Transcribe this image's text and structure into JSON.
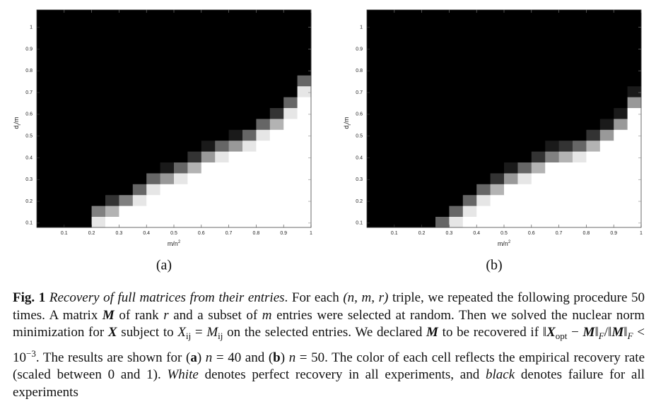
{
  "chart_data": [
    {
      "type": "heatmap",
      "label": "(a)",
      "x_label": [
        "m/n",
        "2"
      ],
      "y_label": [
        "d",
        "r",
        "/m"
      ],
      "colormap": "gray",
      "xlim": [
        0,
        1
      ],
      "ylim": [
        0.08,
        1.08
      ],
      "xticks": [
        0.1,
        0.2,
        0.3,
        0.4,
        0.5,
        0.6,
        0.7,
        0.8,
        0.9,
        1
      ],
      "yticks": [
        0.1,
        0.2,
        0.3,
        0.4,
        0.5,
        0.6,
        0.7,
        0.8,
        0.9,
        1
      ],
      "x_bins": [
        0,
        0.05,
        0.1,
        0.15,
        0.2,
        0.25,
        0.3,
        0.35,
        0.4,
        0.45,
        0.5,
        0.55,
        0.6,
        0.65,
        0.7,
        0.75,
        0.8,
        0.85,
        0.9,
        0.95,
        1
      ],
      "y_bins": [
        0.08,
        0.13,
        0.18,
        0.23,
        0.28,
        0.33,
        0.38,
        0.43,
        0.48,
        0.53,
        0.58,
        0.63,
        0.68,
        0.73,
        0.78,
        0.83,
        0.88,
        0.93,
        0.98,
        1.03,
        1.08
      ],
      "values": [
        [
          0,
          0,
          0,
          0,
          0.9,
          1,
          1,
          1,
          1,
          1,
          1,
          1,
          1,
          1,
          1,
          1,
          1,
          1,
          1,
          1
        ],
        [
          0,
          0,
          0,
          0,
          0.5,
          0.7,
          1,
          1,
          1,
          1,
          1,
          1,
          1,
          1,
          1,
          1,
          1,
          1,
          1,
          1
        ],
        [
          0,
          0,
          0,
          0,
          0,
          0.2,
          0.5,
          0.9,
          1,
          1,
          1,
          1,
          1,
          1,
          1,
          1,
          1,
          1,
          1,
          1
        ],
        [
          0,
          0,
          0,
          0,
          0,
          0,
          0,
          0.4,
          0.9,
          1,
          1,
          1,
          1,
          1,
          1,
          1,
          1,
          1,
          1,
          1
        ],
        [
          0,
          0,
          0,
          0,
          0,
          0,
          0,
          0,
          0.4,
          0.6,
          0.9,
          1,
          1,
          1,
          1,
          1,
          1,
          1,
          1,
          1
        ],
        [
          0,
          0,
          0,
          0,
          0,
          0,
          0,
          0,
          0,
          0.1,
          0.4,
          0.7,
          1,
          1,
          1,
          1,
          1,
          1,
          1,
          1
        ],
        [
          0,
          0,
          0,
          0,
          0,
          0,
          0,
          0,
          0,
          0,
          0,
          0.2,
          0.6,
          0.9,
          1,
          1,
          1,
          1,
          1,
          1
        ],
        [
          0,
          0,
          0,
          0,
          0,
          0,
          0,
          0,
          0,
          0,
          0,
          0,
          0.1,
          0.4,
          0.6,
          0.9,
          1,
          1,
          1,
          1
        ],
        [
          0,
          0,
          0,
          0,
          0,
          0,
          0,
          0,
          0,
          0,
          0,
          0,
          0,
          0,
          0.1,
          0.4,
          0.9,
          1,
          1,
          1
        ],
        [
          0,
          0,
          0,
          0,
          0,
          0,
          0,
          0,
          0,
          0,
          0,
          0,
          0,
          0,
          0,
          0,
          0.4,
          0.7,
          1,
          1
        ],
        [
          0,
          0,
          0,
          0,
          0,
          0,
          0,
          0,
          0,
          0,
          0,
          0,
          0,
          0,
          0,
          0,
          0,
          0.2,
          0.9,
          1
        ],
        [
          0,
          0,
          0,
          0,
          0,
          0,
          0,
          0,
          0,
          0,
          0,
          0,
          0,
          0,
          0,
          0,
          0,
          0,
          0.4,
          1
        ],
        [
          0,
          0,
          0,
          0,
          0,
          0,
          0,
          0,
          0,
          0,
          0,
          0,
          0,
          0,
          0,
          0,
          0,
          0,
          0,
          0.9
        ],
        [
          0,
          0,
          0,
          0,
          0,
          0,
          0,
          0,
          0,
          0,
          0,
          0,
          0,
          0,
          0,
          0,
          0,
          0,
          0,
          0.4
        ],
        [
          0,
          0,
          0,
          0,
          0,
          0,
          0,
          0,
          0,
          0,
          0,
          0,
          0,
          0,
          0,
          0,
          0,
          0,
          0,
          0
        ],
        [
          0,
          0,
          0,
          0,
          0,
          0,
          0,
          0,
          0,
          0,
          0,
          0,
          0,
          0,
          0,
          0,
          0,
          0,
          0,
          0
        ],
        [
          0,
          0,
          0,
          0,
          0,
          0,
          0,
          0,
          0,
          0,
          0,
          0,
          0,
          0,
          0,
          0,
          0,
          0,
          0,
          0
        ],
        [
          0,
          0,
          0,
          0,
          0,
          0,
          0,
          0,
          0,
          0,
          0,
          0,
          0,
          0,
          0,
          0,
          0,
          0,
          0,
          0
        ],
        [
          0,
          0,
          0,
          0,
          0,
          0,
          0,
          0,
          0,
          0,
          0,
          0,
          0,
          0,
          0,
          0,
          0,
          0,
          0,
          0
        ],
        [
          0,
          0,
          0,
          0,
          0,
          0,
          0,
          0,
          0,
          0,
          0,
          0,
          0,
          0,
          0,
          0,
          0,
          0,
          0,
          0
        ]
      ]
    },
    {
      "type": "heatmap",
      "label": "(b)",
      "x_label": [
        "m/n",
        "2"
      ],
      "y_label": [
        "d",
        "r",
        "/m"
      ],
      "colormap": "gray",
      "xlim": [
        0,
        1
      ],
      "ylim": [
        0.08,
        1.08
      ],
      "xticks": [
        0.1,
        0.2,
        0.3,
        0.4,
        0.5,
        0.6,
        0.7,
        0.8,
        0.9,
        1
      ],
      "yticks": [
        0.1,
        0.2,
        0.3,
        0.4,
        0.5,
        0.6,
        0.7,
        0.8,
        0.9,
        1
      ],
      "x_bins": [
        0,
        0.05,
        0.1,
        0.15,
        0.2,
        0.25,
        0.3,
        0.35,
        0.4,
        0.45,
        0.5,
        0.55,
        0.6,
        0.65,
        0.7,
        0.75,
        0.8,
        0.85,
        0.9,
        0.95,
        1
      ],
      "y_bins": [
        0.08,
        0.13,
        0.18,
        0.23,
        0.28,
        0.33,
        0.38,
        0.43,
        0.48,
        0.53,
        0.58,
        0.63,
        0.68,
        0.73,
        0.78,
        0.83,
        0.88,
        0.93,
        0.98,
        1.03,
        1.08
      ],
      "values": [
        [
          0,
          0,
          0,
          0,
          0,
          0.4,
          0.9,
          1,
          1,
          1,
          1,
          1,
          1,
          1,
          1,
          1,
          1,
          1,
          1,
          1
        ],
        [
          0,
          0,
          0,
          0,
          0,
          0,
          0.4,
          0.9,
          1,
          1,
          1,
          1,
          1,
          1,
          1,
          1,
          1,
          1,
          1,
          1
        ],
        [
          0,
          0,
          0,
          0,
          0,
          0,
          0,
          0.4,
          0.9,
          1,
          1,
          1,
          1,
          1,
          1,
          1,
          1,
          1,
          1,
          1
        ],
        [
          0,
          0,
          0,
          0,
          0,
          0,
          0,
          0,
          0.4,
          0.7,
          1,
          1,
          1,
          1,
          1,
          1,
          1,
          1,
          1,
          1
        ],
        [
          0,
          0,
          0,
          0,
          0,
          0,
          0,
          0,
          0,
          0.2,
          0.6,
          0.9,
          1,
          1,
          1,
          1,
          1,
          1,
          1,
          1
        ],
        [
          0,
          0,
          0,
          0,
          0,
          0,
          0,
          0,
          0,
          0,
          0.1,
          0.4,
          0.7,
          1,
          1,
          1,
          1,
          1,
          1,
          1
        ],
        [
          0,
          0,
          0,
          0,
          0,
          0,
          0,
          0,
          0,
          0,
          0,
          0,
          0.2,
          0.5,
          0.7,
          0.9,
          1,
          1,
          1,
          1
        ],
        [
          0,
          0,
          0,
          0,
          0,
          0,
          0,
          0,
          0,
          0,
          0,
          0,
          0,
          0.1,
          0.2,
          0.4,
          0.7,
          1,
          1,
          1
        ],
        [
          0,
          0,
          0,
          0,
          0,
          0,
          0,
          0,
          0,
          0,
          0,
          0,
          0,
          0,
          0,
          0,
          0.2,
          0.6,
          1,
          1
        ],
        [
          0,
          0,
          0,
          0,
          0,
          0,
          0,
          0,
          0,
          0,
          0,
          0,
          0,
          0,
          0,
          0,
          0,
          0.1,
          0.6,
          1
        ],
        [
          0,
          0,
          0,
          0,
          0,
          0,
          0,
          0,
          0,
          0,
          0,
          0,
          0,
          0,
          0,
          0,
          0,
          0,
          0.1,
          1
        ],
        [
          0,
          0,
          0,
          0,
          0,
          0,
          0,
          0,
          0,
          0,
          0,
          0,
          0,
          0,
          0,
          0,
          0,
          0,
          0,
          0.6
        ],
        [
          0,
          0,
          0,
          0,
          0,
          0,
          0,
          0,
          0,
          0,
          0,
          0,
          0,
          0,
          0,
          0,
          0,
          0,
          0,
          0.1
        ],
        [
          0,
          0,
          0,
          0,
          0,
          0,
          0,
          0,
          0,
          0,
          0,
          0,
          0,
          0,
          0,
          0,
          0,
          0,
          0,
          0
        ],
        [
          0,
          0,
          0,
          0,
          0,
          0,
          0,
          0,
          0,
          0,
          0,
          0,
          0,
          0,
          0,
          0,
          0,
          0,
          0,
          0
        ],
        [
          0,
          0,
          0,
          0,
          0,
          0,
          0,
          0,
          0,
          0,
          0,
          0,
          0,
          0,
          0,
          0,
          0,
          0,
          0,
          0
        ],
        [
          0,
          0,
          0,
          0,
          0,
          0,
          0,
          0,
          0,
          0,
          0,
          0,
          0,
          0,
          0,
          0,
          0,
          0,
          0,
          0
        ],
        [
          0,
          0,
          0,
          0,
          0,
          0,
          0,
          0,
          0,
          0,
          0,
          0,
          0,
          0,
          0,
          0,
          0,
          0,
          0,
          0
        ],
        [
          0,
          0,
          0,
          0,
          0,
          0,
          0,
          0,
          0,
          0,
          0,
          0,
          0,
          0,
          0,
          0,
          0,
          0,
          0,
          0
        ],
        [
          0,
          0,
          0,
          0,
          0,
          0,
          0,
          0,
          0,
          0,
          0,
          0,
          0,
          0,
          0,
          0,
          0,
          0,
          0,
          0
        ]
      ]
    }
  ],
  "caption": [
    {
      "text": "Fig. 1",
      "style": "bold"
    },
    {
      "text": " Recovery of full matrices from their entries",
      "style": "italic"
    },
    {
      "text": ". For each ",
      "style": "normal"
    },
    {
      "text": "(n, m, r)",
      "style": "italic"
    },
    {
      "text": " triple, we repeated the following procedure 50 times. A matrix ",
      "style": "normal"
    },
    {
      "text": "M",
      "style": "bold-italic"
    },
    {
      "text": " of rank ",
      "style": "normal"
    },
    {
      "text": "r",
      "style": "italic"
    },
    {
      "text": " and a subset of ",
      "style": "normal"
    },
    {
      "text": "m",
      "style": "italic"
    },
    {
      "text": " entries were selected at random. Then we solved the nuclear norm minimization for ",
      "style": "normal"
    },
    {
      "text": "X",
      "style": "bold-italic"
    },
    {
      "text": " subject to ",
      "style": "normal"
    },
    {
      "text": "X",
      "style": "italic"
    },
    {
      "text": "ij",
      "style": "sub"
    },
    {
      "text": " = ",
      "style": "normal"
    },
    {
      "text": "M",
      "style": "italic"
    },
    {
      "text": "ij",
      "style": "sub"
    },
    {
      "text": " on the selected entries. We declared ",
      "style": "normal"
    },
    {
      "text": "M",
      "style": "bold-italic"
    },
    {
      "text": " to be recovered if ‖",
      "style": "normal"
    },
    {
      "text": "X",
      "style": "bold-italic"
    },
    {
      "text": "opt",
      "style": "sub"
    },
    {
      "text": " − ",
      "style": "normal"
    },
    {
      "text": "M",
      "style": "bold-italic"
    },
    {
      "text": "‖",
      "style": "normal"
    },
    {
      "text": "F",
      "style": "sub-italic"
    },
    {
      "text": "/‖",
      "style": "normal"
    },
    {
      "text": "M",
      "style": "bold-italic"
    },
    {
      "text": "‖",
      "style": "normal"
    },
    {
      "text": "F",
      "style": "sub-italic"
    },
    {
      "text": " < 10",
      "style": "normal"
    },
    {
      "text": "−3",
      "style": "sup"
    },
    {
      "text": ". The results are shown for (",
      "style": "normal"
    },
    {
      "text": "a",
      "style": "bold"
    },
    {
      "text": ") ",
      "style": "normal"
    },
    {
      "text": "n",
      "style": "italic"
    },
    {
      "text": " = 40 and (",
      "style": "normal"
    },
    {
      "text": "b",
      "style": "bold"
    },
    {
      "text": ") ",
      "style": "normal"
    },
    {
      "text": "n",
      "style": "italic"
    },
    {
      "text": " = 50. The color of each cell reflects the empirical recovery rate (scaled between 0 and 1). ",
      "style": "normal"
    },
    {
      "text": "White",
      "style": "italic"
    },
    {
      "text": " denotes perfect recovery in all experiments, and ",
      "style": "normal"
    },
    {
      "text": "black",
      "style": "italic"
    },
    {
      "text": " denotes failure for all experiments",
      "style": "normal"
    }
  ]
}
